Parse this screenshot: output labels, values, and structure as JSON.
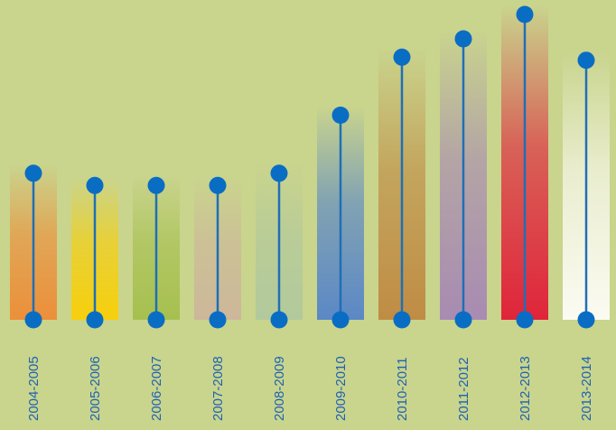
{
  "chart_data": {
    "type": "bar",
    "categories": [
      "2004-2005",
      "2005-2006",
      "2006-2007",
      "2007-2008",
      "2008-2009",
      "2009-2010",
      "2010-2011",
      "2011-2012",
      "2012-2013",
      "2013-2014"
    ],
    "values": [
      48,
      44,
      44,
      44,
      48,
      67,
      86,
      92,
      100,
      85
    ],
    "ylim": [
      0,
      100
    ],
    "grid": false,
    "legend": "none",
    "title": "",
    "xlabel": "",
    "ylabel": "",
    "colors": {
      "background": "#c9d48d",
      "stem": "#1f6fb6",
      "marker": "#0a6dc4",
      "tick_label": "#1e63b0",
      "bars": [
        "#ec8f3a",
        "#f7cf0c",
        "#a6c04f",
        "#cdb79a",
        "#b2c99c",
        "#5b88c6",
        "#c08c44",
        "#a88bb2",
        "#e0243a",
        "#fbfbf2"
      ]
    }
  }
}
